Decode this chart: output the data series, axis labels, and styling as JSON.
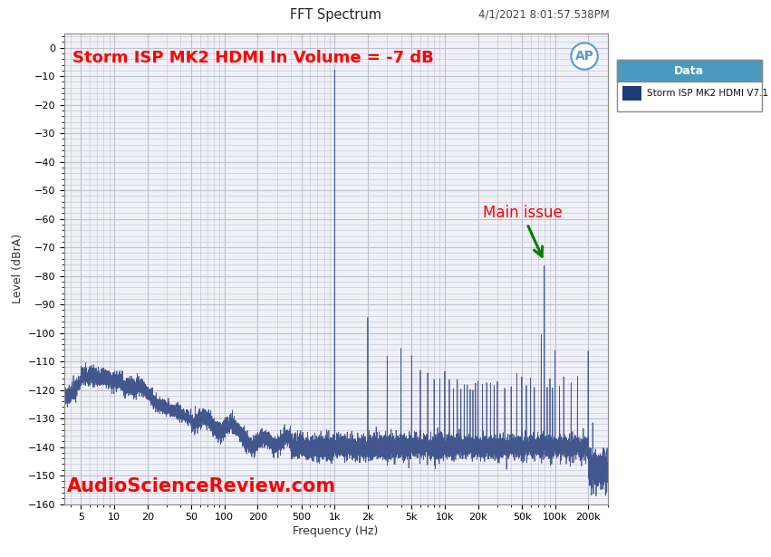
{
  "title": "FFT Spectrum",
  "subtitle": "4/1/2021 8:01:57.538PM",
  "xlabel": "Frequency (Hz)",
  "ylabel": "Level (dBrA)",
  "annotation_text": "Storm ISP MK2 HDMI In Volume = -7 dB",
  "asr_watermark": "AudioScienceReview.com",
  "legend_title": "Data",
  "legend_label": "Storm ISP MK2 HDMI V7.1",
  "legend_color": "#1F3A7A",
  "legend_header_bg": "#4A9AC0",
  "main_issue_label": "Main issue",
  "ylim": [
    -160,
    5
  ],
  "yticks": [
    0,
    -10,
    -20,
    -30,
    -40,
    -50,
    -60,
    -70,
    -80,
    -90,
    -100,
    -110,
    -120,
    -130,
    -140,
    -150,
    -160
  ],
  "xticks_log": [
    5,
    10,
    20,
    50,
    100,
    200,
    500,
    1000,
    2000,
    5000,
    10000,
    20000,
    50000,
    100000,
    200000
  ],
  "xtick_labels": [
    "5",
    "10",
    "20",
    "50",
    "100",
    "200",
    "500",
    "1k",
    "2k",
    "5k",
    "10k",
    "20k",
    "50k",
    "100k",
    "200k"
  ],
  "xmin": 3.5,
  "xmax": 300000,
  "line_color": "#3A4F8A",
  "background_color": "#F0F0F8",
  "grid_color": "#C0C0D0",
  "ap_logo_color": "#5599CC",
  "spike_color": "#3A4F8A"
}
